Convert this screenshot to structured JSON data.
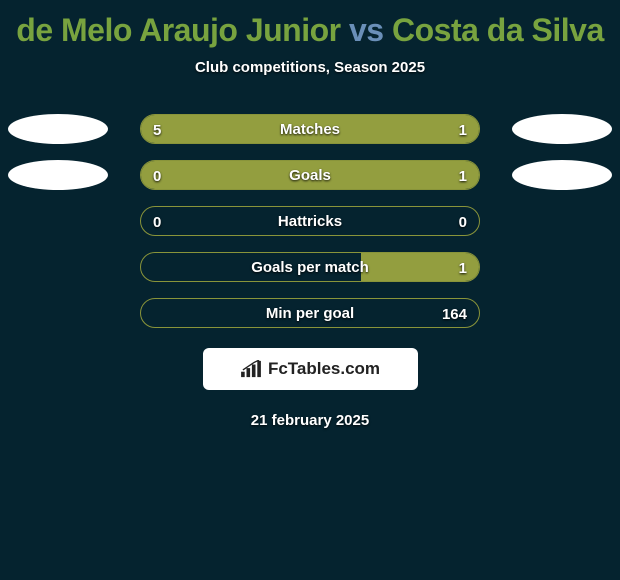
{
  "title": {
    "player1": "de Melo Araujo Junior",
    "vs": "vs",
    "player2": "Costa da Silva",
    "player1_color": "#78a33f",
    "vs_color": "#6a8fb8",
    "player2_color": "#78a33f"
  },
  "subtitle": "Club competitions, Season 2025",
  "background_color": "#05232f",
  "bar_border_color": "#89943a",
  "bar_fill_color": "#939e3f",
  "text_color": "#ffffff",
  "rows": [
    {
      "label": "Matches",
      "left_value": "5",
      "right_value": "1",
      "left_fill_pct": 80,
      "right_fill_pct": 20,
      "show_left_avatar": true,
      "show_right_avatar": true
    },
    {
      "label": "Goals",
      "left_value": "0",
      "right_value": "1",
      "left_fill_pct": 18,
      "right_fill_pct": 82,
      "show_left_avatar": true,
      "show_right_avatar": true
    },
    {
      "label": "Hattricks",
      "left_value": "0",
      "right_value": "0",
      "left_fill_pct": 0,
      "right_fill_pct": 0,
      "show_left_avatar": false,
      "show_right_avatar": false
    },
    {
      "label": "Goals per match",
      "left_value": "",
      "right_value": "1",
      "left_fill_pct": 0,
      "right_fill_pct": 35,
      "show_left_avatar": false,
      "show_right_avatar": false
    },
    {
      "label": "Min per goal",
      "left_value": "",
      "right_value": "164",
      "left_fill_pct": 0,
      "right_fill_pct": 0,
      "show_left_avatar": false,
      "show_right_avatar": false
    }
  ],
  "attribution": "FcTables.com",
  "date": "21 february 2025",
  "avatar_color": "#ffffff"
}
